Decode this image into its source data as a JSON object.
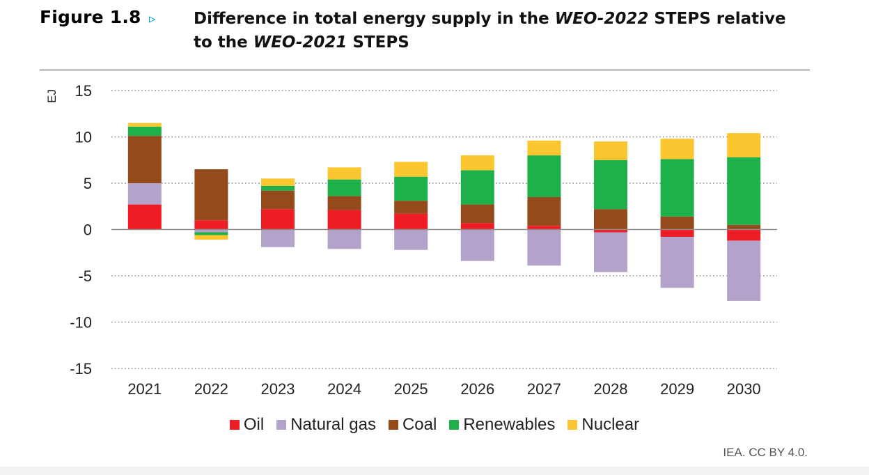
{
  "header": {
    "figure_label": "Figure 1.8",
    "arrow": "▹",
    "title_part1": "Difference in total energy supply in the ",
    "title_italic1": "WEO-2022",
    "title_part2": " STEPS relative to the ",
    "title_italic2": "WEO-2021",
    "title_part3": " STEPS"
  },
  "source": "IEA. CC BY 4.0.",
  "chart_data": {
    "type": "bar",
    "stacked": true,
    "title": "Difference in total energy supply in the WEO-2022 STEPS relative to the WEO-2021 STEPS",
    "xlabel": "",
    "ylabel": "EJ",
    "ylim": [
      -15,
      15
    ],
    "yticks": [
      15,
      10,
      5,
      0,
      -5,
      -10,
      -15
    ],
    "grid": "dotted horizontal",
    "legend": "bottom",
    "categories": [
      "2021",
      "2022",
      "2023",
      "2024",
      "2025",
      "2026",
      "2027",
      "2028",
      "2029",
      "2030"
    ],
    "series": [
      {
        "name": "Oil",
        "color": "#ee1c25",
        "values": [
          2.7,
          1.0,
          2.2,
          2.1,
          1.7,
          0.7,
          0.4,
          -0.3,
          -0.8,
          -1.2
        ]
      },
      {
        "name": "Natural gas",
        "color": "#b3a2c9",
        "values": [
          2.3,
          -0.3,
          -1.9,
          -2.1,
          -2.2,
          -3.4,
          -3.9,
          -4.3,
          -5.5,
          -6.5
        ]
      },
      {
        "name": "Coal",
        "color": "#954a1b",
        "values": [
          5.1,
          5.5,
          2.0,
          1.5,
          1.4,
          2.0,
          3.1,
          2.2,
          1.4,
          0.5
        ]
      },
      {
        "name": "Renewables",
        "color": "#1db04b",
        "values": [
          1.0,
          -0.3,
          0.5,
          1.8,
          2.6,
          3.7,
          4.5,
          5.3,
          6.2,
          7.3
        ]
      },
      {
        "name": "Nuclear",
        "color": "#fbc630",
        "values": [
          0.4,
          -0.5,
          0.8,
          1.3,
          1.6,
          1.6,
          1.6,
          2.0,
          2.2,
          2.6
        ]
      }
    ]
  }
}
